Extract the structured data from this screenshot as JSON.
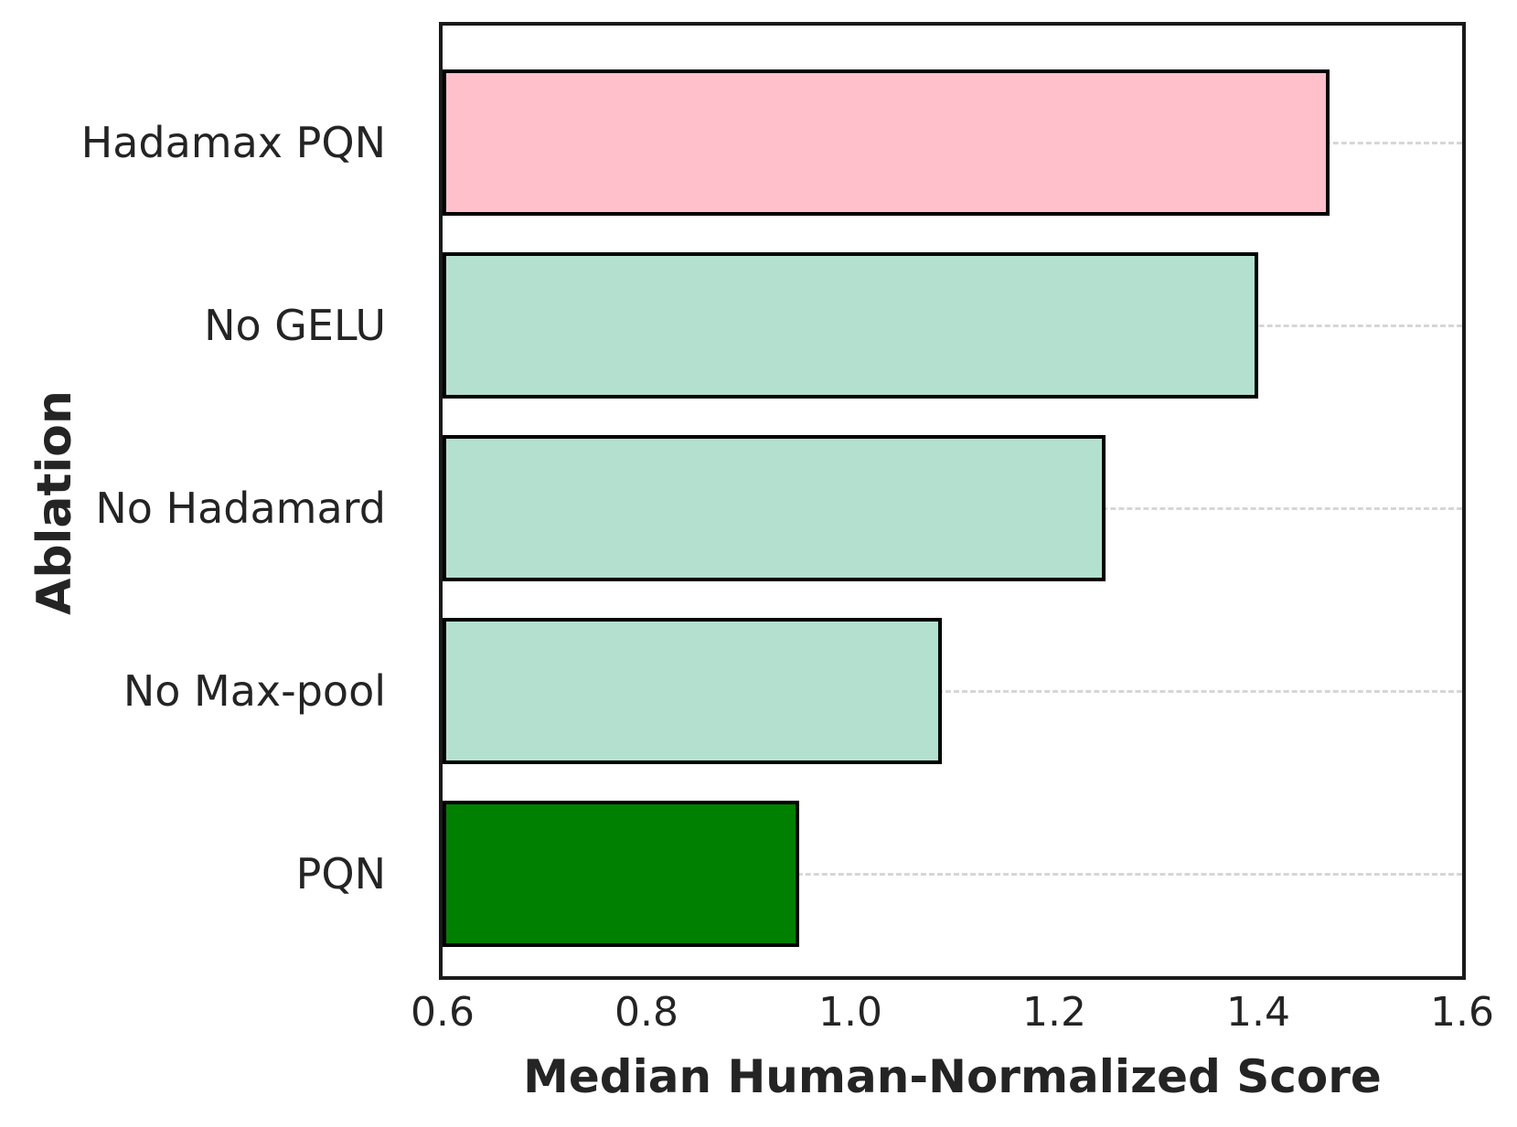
{
  "chart_data": {
    "type": "bar",
    "orientation": "horizontal",
    "title": "",
    "xlabel": "Median Human-Normalized Score",
    "ylabel": "Ablation",
    "categories": [
      "Hadamax PQN",
      "No GELU",
      "No Hadamard",
      "No Max-pool",
      "PQN"
    ],
    "values": [
      1.47,
      1.4,
      1.25,
      1.09,
      0.95
    ],
    "bar_colors": [
      "#ffc0cb",
      "#b4e0cf",
      "#b4e0cf",
      "#b4e0cf",
      "#008000"
    ],
    "bar_edge_color": "#000000",
    "xlim": [
      0.6,
      1.6
    ],
    "xticks": [
      "0.6",
      "0.8",
      "1.0",
      "1.2",
      "1.4",
      "1.6"
    ],
    "xtick_values": [
      0.6,
      0.8,
      1.0,
      1.2,
      1.4,
      1.6
    ],
    "grid": "horizontal-dashed-at-category-centers",
    "grid_color": "#d6d6d6",
    "spine_color": "#1a1a1a",
    "legend": "none"
  }
}
